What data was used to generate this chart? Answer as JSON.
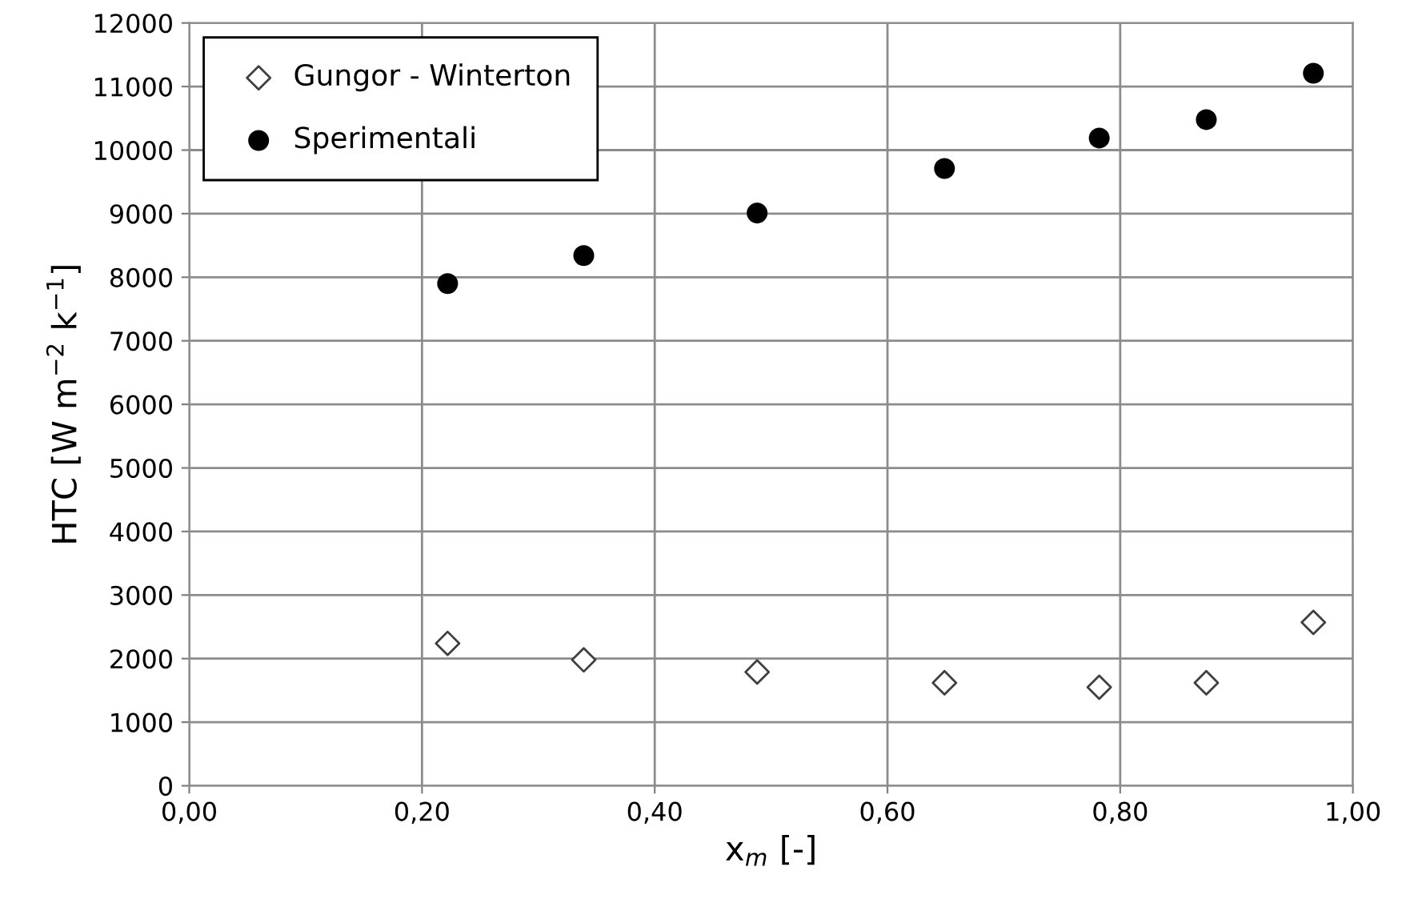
{
  "chart_data": {
    "type": "scatter",
    "xlabel": "x$_{m}$ [-]",
    "ylabel": "HTC [W m$^{−2}$ k$^{−1}$]",
    "series": [
      {
        "name": "Gungor - Winterton",
        "color": "#404040",
        "marker": "diamond",
        "x": [
          0.222,
          0.339,
          0.488,
          0.649,
          0.782,
          0.874,
          0.966
        ],
        "values": [
          2240,
          1980,
          1790,
          1620,
          1550,
          1620,
          2570
        ]
      },
      {
        "name": "Sperimentali",
        "color": "#000000",
        "marker": "circle",
        "x": [
          0.222,
          0.339,
          0.488,
          0.649,
          0.782,
          0.874,
          0.966
        ],
        "values": [
          7900,
          8340,
          9010,
          9710,
          10190,
          10480,
          11210
        ]
      }
    ],
    "xlim": [
      0,
      1
    ],
    "ylim": [
      0,
      12000
    ],
    "xticks": [
      {
        "value": 0,
        "label": "0,00"
      },
      {
        "value": 0.2,
        "label": "0,20"
      },
      {
        "value": 0.4,
        "label": "0,40"
      },
      {
        "value": 0.6,
        "label": "0,60"
      },
      {
        "value": 0.8,
        "label": "0,80"
      },
      {
        "value": 1,
        "label": "1,00"
      }
    ],
    "yticks": [
      0,
      1000,
      2000,
      3000,
      4000,
      5000,
      6000,
      7000,
      8000,
      9000,
      10000,
      11000,
      12000
    ],
    "grid": true,
    "legend": "top left"
  }
}
